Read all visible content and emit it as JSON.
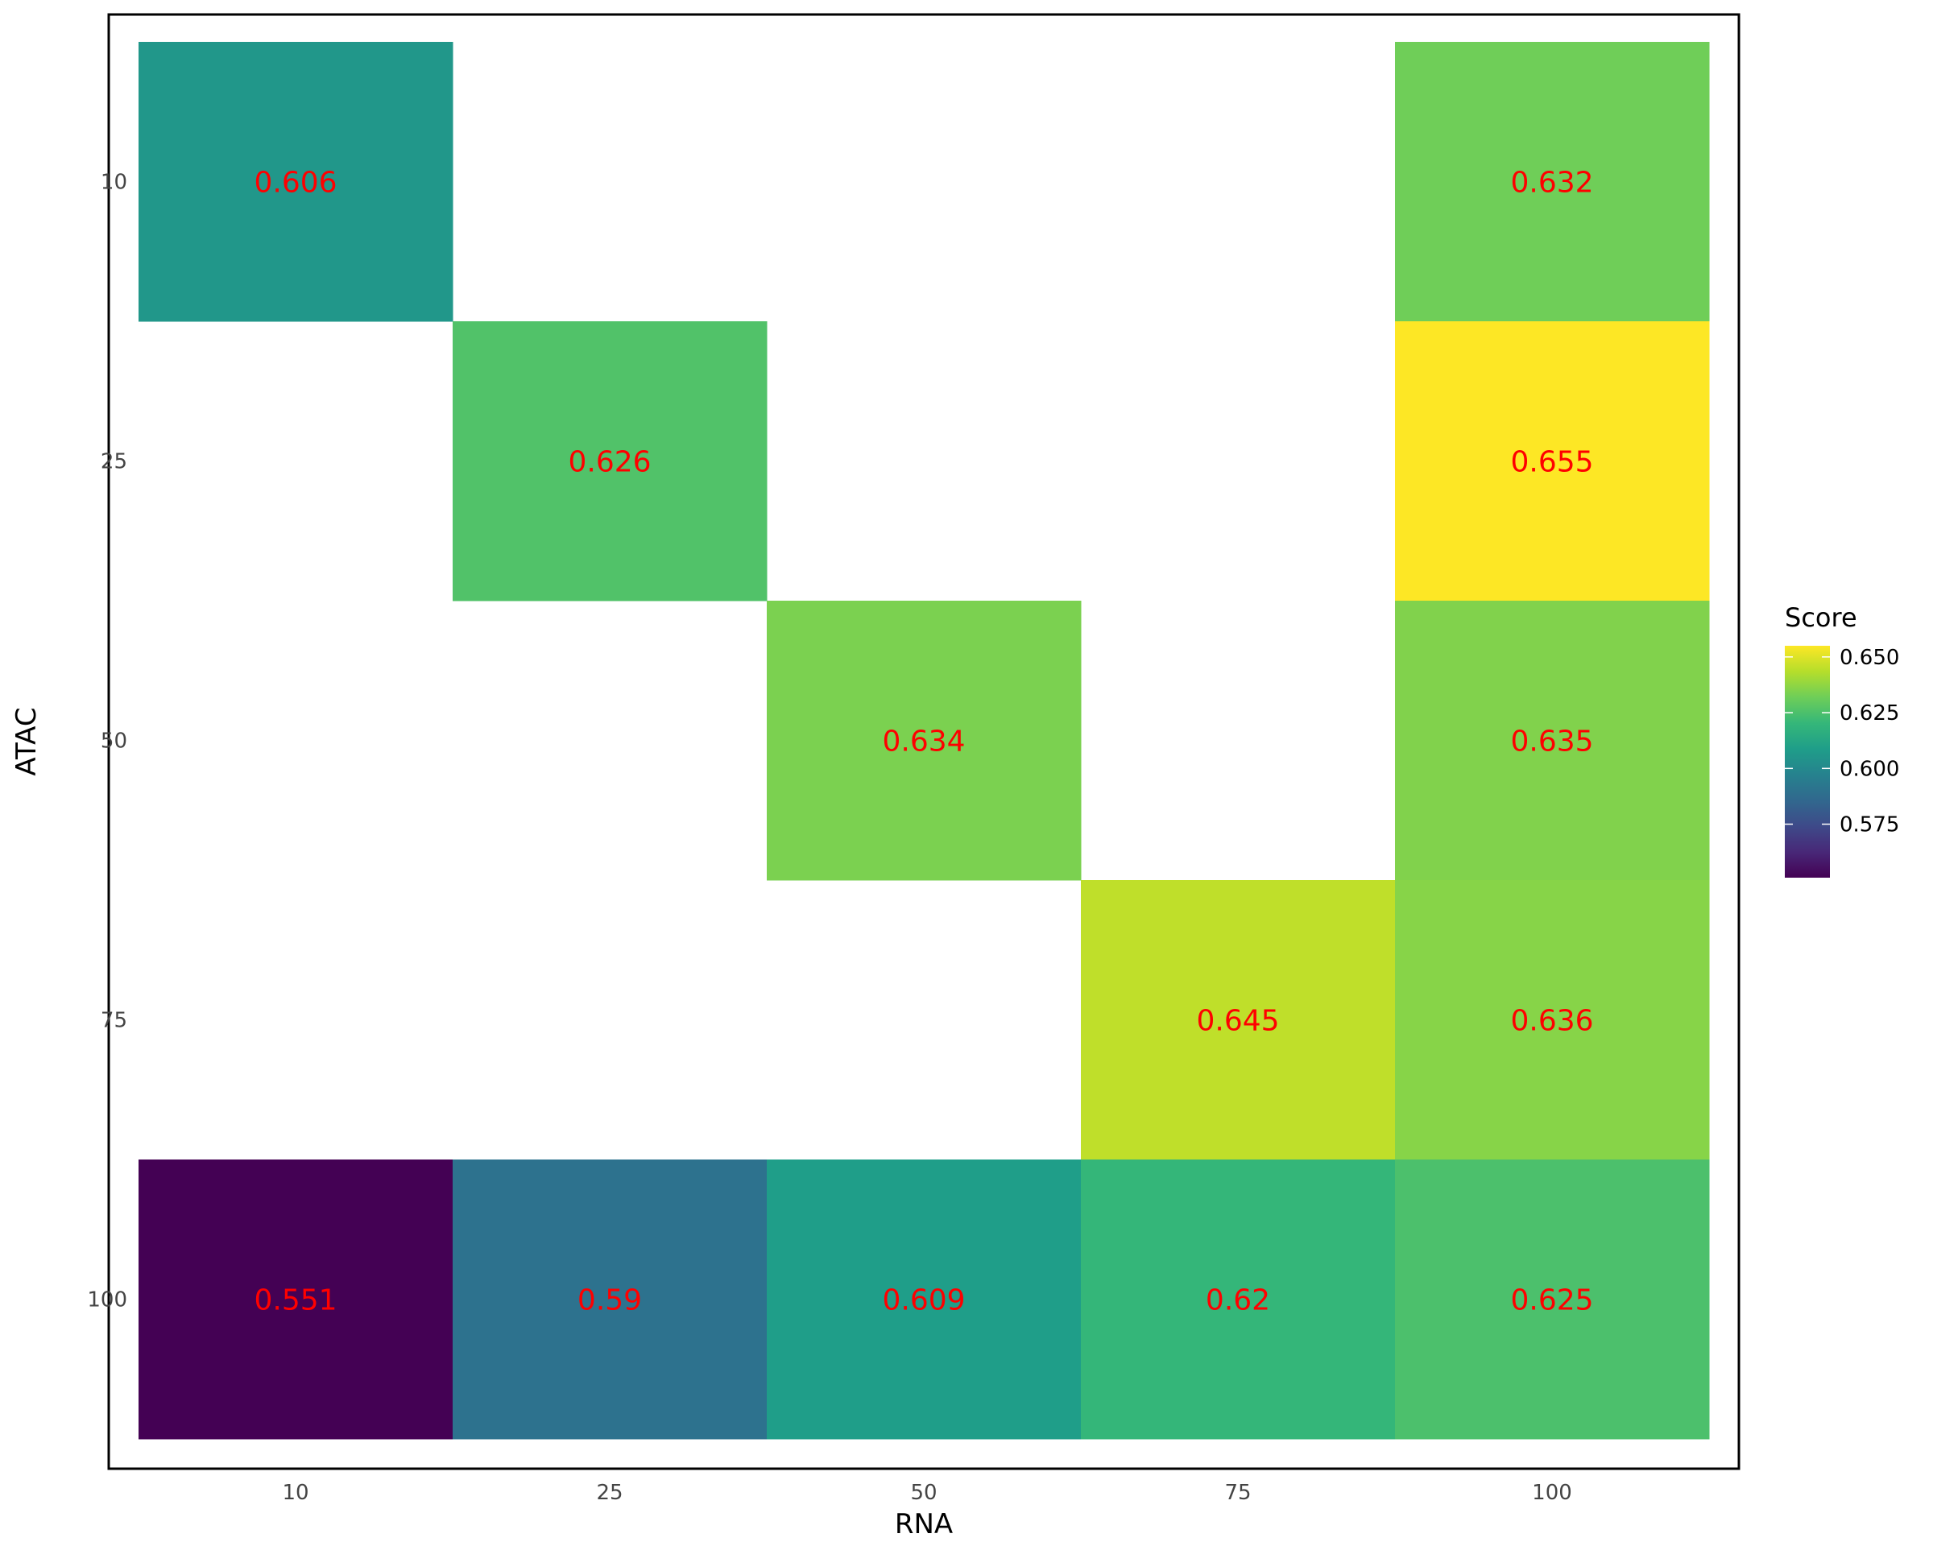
{
  "chart_data": {
    "type": "heatmap",
    "title": "",
    "xlabel": "RNA",
    "ylabel": "ATAC",
    "x_categories": [
      "10",
      "25",
      "50",
      "75",
      "100"
    ],
    "y_categories": [
      "10",
      "25",
      "50",
      "75",
      "100"
    ],
    "cells": [
      {
        "x": "10",
        "y": "10",
        "value": 0.606,
        "label": "0.606"
      },
      {
        "x": "100",
        "y": "10",
        "value": 0.632,
        "label": "0.632"
      },
      {
        "x": "25",
        "y": "25",
        "value": 0.626,
        "label": "0.626"
      },
      {
        "x": "100",
        "y": "25",
        "value": 0.655,
        "label": "0.655"
      },
      {
        "x": "50",
        "y": "50",
        "value": 0.634,
        "label": "0.634"
      },
      {
        "x": "100",
        "y": "50",
        "value": 0.635,
        "label": "0.635"
      },
      {
        "x": "75",
        "y": "75",
        "value": 0.645,
        "label": "0.645"
      },
      {
        "x": "100",
        "y": "75",
        "value": 0.636,
        "label": "0.636"
      },
      {
        "x": "10",
        "y": "100",
        "value": 0.551,
        "label": "0.551"
      },
      {
        "x": "25",
        "y": "100",
        "value": 0.59,
        "label": "0.59"
      },
      {
        "x": "50",
        "y": "100",
        "value": 0.609,
        "label": "0.609"
      },
      {
        "x": "75",
        "y": "100",
        "value": 0.62,
        "label": "0.62"
      },
      {
        "x": "100",
        "y": "100",
        "value": 0.625,
        "label": "0.625"
      }
    ],
    "legend": {
      "title": "Score",
      "placement": "right",
      "ticks": [
        {
          "value": 0.575,
          "label": "0.575"
        },
        {
          "value": 0.6,
          "label": "0.600"
        },
        {
          "value": 0.625,
          "label": "0.625"
        },
        {
          "value": 0.65,
          "label": "0.650"
        }
      ],
      "range": [
        0.551,
        0.655
      ]
    },
    "colormap": [
      "#440154",
      "#482878",
      "#3e4a89",
      "#31688e",
      "#26828e",
      "#1f9e89",
      "#35b779",
      "#6ece58",
      "#b5de2b",
      "#fde725"
    ],
    "cell_label_color": "#ff0000",
    "grid": false
  }
}
